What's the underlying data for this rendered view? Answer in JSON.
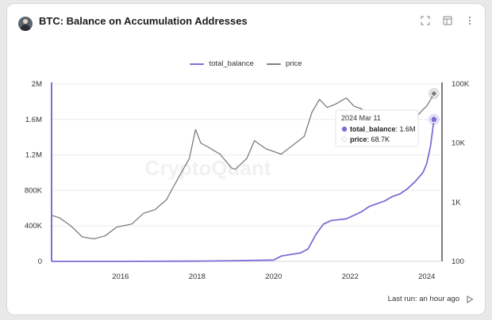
{
  "header": {
    "title": "BTC: Balance on Accumulation Addresses",
    "icons": [
      "fullscreen-icon",
      "table-icon",
      "more-vertical-icon"
    ]
  },
  "footer": {
    "last_run": "Last run: an hour ago"
  },
  "watermark": "CryptoQuant",
  "colors": {
    "balance": "#7b6fd6",
    "price": "#7d7d7d",
    "grid": "#ececec"
  },
  "chart_data": {
    "type": "line",
    "series_labels": [
      "total_balance",
      "price"
    ],
    "x_ticks": [
      "2016",
      "2018",
      "2020",
      "2022",
      "2024"
    ],
    "xlim": [
      2014.2,
      2024.4
    ],
    "left_axis": {
      "ticks": [
        "0",
        "400K",
        "800K",
        "1.2M",
        "1.6M",
        "2M"
      ],
      "ylim": [
        0,
        2000000
      ]
    },
    "right_axis": {
      "scale": "log",
      "ticks": [
        "100",
        "1K",
        "10K",
        "100K"
      ],
      "ylim": [
        100,
        100000
      ]
    },
    "series": [
      {
        "name": "total_balance",
        "axis": "left",
        "x": [
          2014.2,
          2016.0,
          2018.0,
          2019.0,
          2020.0,
          2020.2,
          2020.4,
          2020.7,
          2020.9,
          2021.1,
          2021.3,
          2021.5,
          2021.7,
          2021.9,
          2022.1,
          2022.3,
          2022.5,
          2022.7,
          2022.9,
          2023.1,
          2023.3,
          2023.5,
          2023.7,
          2023.9,
          2024.0,
          2024.1,
          2024.19
        ],
        "values": [
          0,
          0,
          3000,
          8000,
          15000,
          60000,
          75000,
          95000,
          140000,
          300000,
          420000,
          460000,
          470000,
          480000,
          520000,
          560000,
          620000,
          650000,
          680000,
          730000,
          760000,
          820000,
          900000,
          1000000,
          1100000,
          1300000,
          1600000
        ]
      },
      {
        "name": "price",
        "axis": "right",
        "x": [
          2014.2,
          2014.4,
          2014.7,
          2015.0,
          2015.3,
          2015.6,
          2015.9,
          2016.3,
          2016.6,
          2016.9,
          2017.2,
          2017.5,
          2017.8,
          2017.96,
          2018.1,
          2018.3,
          2018.6,
          2018.9,
          2019.0,
          2019.3,
          2019.5,
          2019.8,
          2020.0,
          2020.2,
          2020.5,
          2020.8,
          2021.0,
          2021.2,
          2021.4,
          2021.6,
          2021.9,
          2022.1,
          2022.3,
          2022.5,
          2022.7,
          2022.9,
          2023.1,
          2023.3,
          2023.5,
          2023.7,
          2023.9,
          2024.0,
          2024.19
        ],
        "values": [
          600,
          550,
          400,
          260,
          240,
          270,
          380,
          430,
          650,
          750,
          1100,
          2500,
          5500,
          17000,
          10000,
          8500,
          6500,
          3800,
          3600,
          5500,
          11000,
          8000,
          7200,
          6500,
          9200,
          13000,
          33000,
          55000,
          40000,
          45000,
          58000,
          42000,
          38000,
          21000,
          20000,
          16500,
          23000,
          28000,
          30000,
          26000,
          37000,
          42000,
          68700
        ]
      }
    ],
    "tooltip": {
      "date": "2024 Mar 11",
      "balance_label": "total_balance",
      "balance_value": "1.6M",
      "price_label": "price",
      "price_value": "68.7K"
    }
  }
}
